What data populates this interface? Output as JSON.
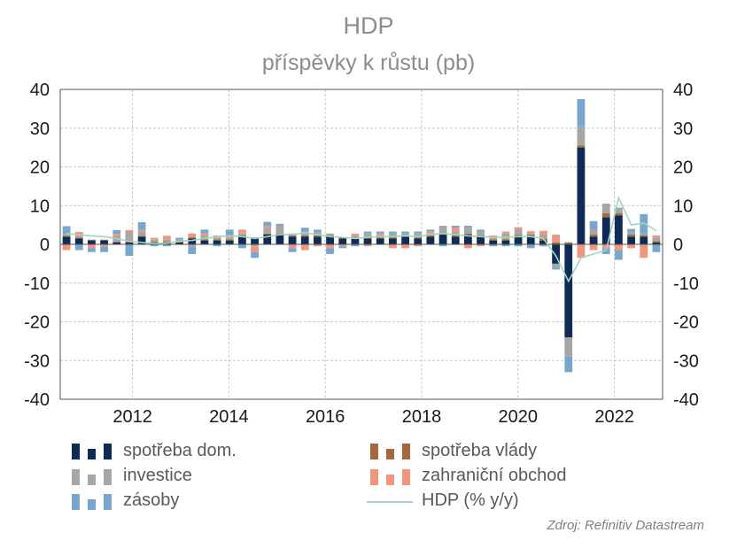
{
  "title": "HDP",
  "subtitle": "příspěvky k růstu  (pb)",
  "source": "Zdroj: Refinitiv Datastream",
  "legend": {
    "consumption": "spotřeba dom.",
    "government": "spotřeba vlády",
    "investment": "investice",
    "trade": "zahraniční obchod",
    "inventories": "zásoby",
    "gdp": "HDP (% y/y)"
  },
  "colors": {
    "consumption": "#0e2b56",
    "government": "#a5683b",
    "investment": "#a6a6a6",
    "trade": "#f2957f",
    "inventories": "#78a6cd",
    "gdp": "#9fd6c0",
    "grid": "#c8c8c8"
  },
  "chart_data": {
    "type": "bar",
    "stacked": true,
    "x_axis": {
      "ticks": [
        "2012",
        "2014",
        "2016",
        "2018",
        "2020",
        "2022"
      ],
      "start": "2010-Q3",
      "end": "2022-Q2"
    },
    "y_axis": {
      "left_ticks": [
        -40,
        -30,
        -20,
        -10,
        0,
        10,
        20,
        30,
        40
      ],
      "right_ticks": [
        -40,
        -30,
        -20,
        -10,
        0,
        10,
        20,
        30,
        40
      ],
      "ylim": [
        -40,
        40
      ]
    },
    "grid": true,
    "legend_position": "bottom",
    "categories": [
      "2010Q3",
      "2010Q4",
      "2011Q1",
      "2011Q2",
      "2011Q3",
      "2011Q4",
      "2012Q1",
      "2012Q2",
      "2012Q3",
      "2012Q4",
      "2013Q1",
      "2013Q2",
      "2013Q3",
      "2013Q4",
      "2014Q1",
      "2014Q2",
      "2014Q3",
      "2014Q4",
      "2015Q1",
      "2015Q2",
      "2015Q3",
      "2015Q4",
      "2016Q1",
      "2016Q2",
      "2016Q3",
      "2016Q4",
      "2017Q1",
      "2017Q2",
      "2017Q3",
      "2017Q4",
      "2018Q1",
      "2018Q2",
      "2018Q3",
      "2018Q4",
      "2019Q1",
      "2019Q2",
      "2019Q3",
      "2019Q4",
      "2020Q1",
      "2020Q2",
      "2020Q3",
      "2020Q4",
      "2021Q1",
      "2021Q2",
      "2021Q3",
      "2021Q4",
      "2022Q1",
      "2022Q2"
    ],
    "series": [
      {
        "name": "spotřeba dom.",
        "kind": "bar",
        "values": [
          2.0,
          1.5,
          1.0,
          1.0,
          0.5,
          0.5,
          2.0,
          0.5,
          0.5,
          0.5,
          1.5,
          1.0,
          1.0,
          1.0,
          2.0,
          1.5,
          2.5,
          2.5,
          2.0,
          2.0,
          2.0,
          2.0,
          1.5,
          1.5,
          1.5,
          1.5,
          1.5,
          2.0,
          1.5,
          2.0,
          2.5,
          2.0,
          2.5,
          2.0,
          1.0,
          1.0,
          2.0,
          2.0,
          1.0,
          -5.0,
          -24.0,
          25.0,
          2.0,
          7.0,
          7.5,
          2.0,
          2.0,
          0.5
        ]
      },
      {
        "name": "spotřeba vlády",
        "kind": "bar",
        "values": [
          0.2,
          0.2,
          0.2,
          0.2,
          0.2,
          0.2,
          0.2,
          0.2,
          0.2,
          0.2,
          0.3,
          0.3,
          0.3,
          0.3,
          0.3,
          0.3,
          0.3,
          0.3,
          0.3,
          0.3,
          0.3,
          0.3,
          0.3,
          0.3,
          0.3,
          0.3,
          0.3,
          0.3,
          0.3,
          0.3,
          0.3,
          0.3,
          0.3,
          0.3,
          0.3,
          0.3,
          0.4,
          0.4,
          0.5,
          0.5,
          0.5,
          0.5,
          0.5,
          1.0,
          0.5,
          0.5,
          0.3,
          0.3
        ]
      },
      {
        "name": "investice",
        "kind": "bar",
        "values": [
          0.5,
          0.5,
          0.0,
          0.0,
          1.5,
          2.5,
          1.0,
          0.5,
          0.5,
          0.5,
          -0.5,
          1.0,
          0.5,
          0.5,
          0.5,
          -0.5,
          1.5,
          2.0,
          0.5,
          1.0,
          1.0,
          0.5,
          0.0,
          0.5,
          1.0,
          0.5,
          1.0,
          0.5,
          1.0,
          0.5,
          2.0,
          1.0,
          1.5,
          1.0,
          0.5,
          1.5,
          1.5,
          0.5,
          1.0,
          -1.0,
          -5.0,
          5.0,
          1.5,
          2.5,
          1.5,
          0.5,
          0.5,
          1.0
        ]
      },
      {
        "name": "zahraniční obchod",
        "kind": "bar",
        "values": [
          -1.5,
          1.0,
          -1.0,
          -0.5,
          0.5,
          0.5,
          0.5,
          0.5,
          1.0,
          0.0,
          1.0,
          0.5,
          0.5,
          0.5,
          1.0,
          -1.5,
          0.5,
          0.0,
          -1.0,
          -1.5,
          -0.5,
          -1.0,
          -0.5,
          0.5,
          -0.5,
          0.5,
          -1.0,
          -1.0,
          -0.5,
          0.5,
          0.0,
          1.0,
          -1.0,
          -0.5,
          0.5,
          0.5,
          0.5,
          0.5,
          1.0,
          2.0,
          0.0,
          -3.5,
          -1.5,
          -1.0,
          -1.5,
          -1.0,
          -3.5,
          0.5
        ]
      },
      {
        "name": "zásoby",
        "kind": "bar",
        "values": [
          2.0,
          -1.5,
          -1.0,
          -1.5,
          1.0,
          -3.0,
          2.0,
          -0.5,
          -0.5,
          0.5,
          -2.0,
          1.0,
          -0.5,
          1.5,
          -1.0,
          -1.5,
          1.0,
          0.5,
          -1.0,
          1.0,
          0.5,
          -1.5,
          -0.5,
          -0.5,
          0.5,
          0.5,
          0.5,
          0.5,
          0.5,
          0.5,
          -0.5,
          0.5,
          0.5,
          0.5,
          -0.5,
          -0.5,
          -0.5,
          -1.0,
          -0.5,
          -0.5,
          -4.0,
          7.0,
          2.0,
          -1.5,
          -2.5,
          1.0,
          5.0,
          -2.0
        ]
      },
      {
        "name": "HDP (% y/y)",
        "kind": "line",
        "values": [
          2.8,
          2.5,
          2.2,
          2.0,
          1.5,
          0.8,
          0.5,
          0.2,
          0.3,
          0.8,
          1.0,
          1.5,
          2.0,
          2.2,
          2.0,
          1.5,
          2.0,
          2.5,
          2.5,
          3.0,
          2.5,
          2.0,
          1.8,
          1.5,
          1.8,
          2.0,
          2.0,
          2.2,
          2.0,
          2.5,
          2.8,
          2.5,
          2.2,
          2.0,
          1.8,
          1.8,
          2.0,
          2.0,
          1.5,
          -3.0,
          -9.5,
          -3.5,
          -2.5,
          -1.5,
          12.0,
          5.0,
          5.5,
          3.5
        ]
      }
    ]
  }
}
